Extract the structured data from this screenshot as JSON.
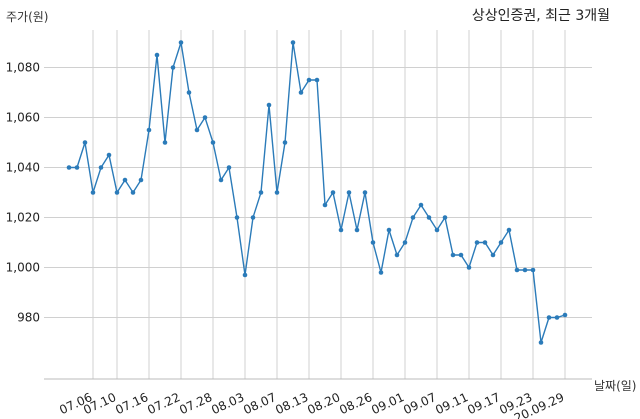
{
  "chart_data": {
    "type": "line",
    "title": "상상인증권, 최근 3개월",
    "ylabel": "주가(원)",
    "xlabel": "날짜(일)",
    "ylim": [
      965,
      1095
    ],
    "yticks": [
      980,
      1000,
      1020,
      1040,
      1060,
      1080
    ],
    "ytick_labels": [
      "980",
      "1,000",
      "1,020",
      "1,040",
      "1,060",
      "1,080"
    ],
    "xtick_labels": [
      "07.06",
      "07.10",
      "07.16",
      "07.22",
      "07.28",
      "08.03",
      "08.07",
      "08.13",
      "08.20",
      "08.26",
      "09.01",
      "09.07",
      "09.11",
      "09.17",
      "09.23",
      "20.09.29"
    ],
    "xtick_index": [
      3,
      6,
      10,
      14,
      18,
      22,
      26,
      30,
      34,
      38,
      42,
      46,
      50,
      54,
      58,
      62
    ],
    "grid": true,
    "color": "#2b7bb9",
    "series": [
      {
        "values": [
          1040,
          1040,
          1050,
          1030,
          1040,
          1045,
          1030,
          1035,
          1030,
          1035,
          1055,
          1085,
          1050,
          1080,
          1090,
          1070,
          1055,
          1060,
          1050,
          1035,
          1040,
          1020,
          997,
          1020,
          1030,
          1065,
          1030,
          1050,
          1090,
          1070,
          1075,
          1075,
          1025,
          1030,
          1015,
          1030,
          1015,
          1030,
          1010,
          998,
          1015,
          1005,
          1010,
          1020,
          1025,
          1020,
          1015,
          1020,
          1005,
          1005,
          1000,
          1010,
          1010,
          1005,
          1010,
          1015,
          999,
          999,
          999,
          970,
          980,
          980,
          981
        ]
      }
    ]
  }
}
